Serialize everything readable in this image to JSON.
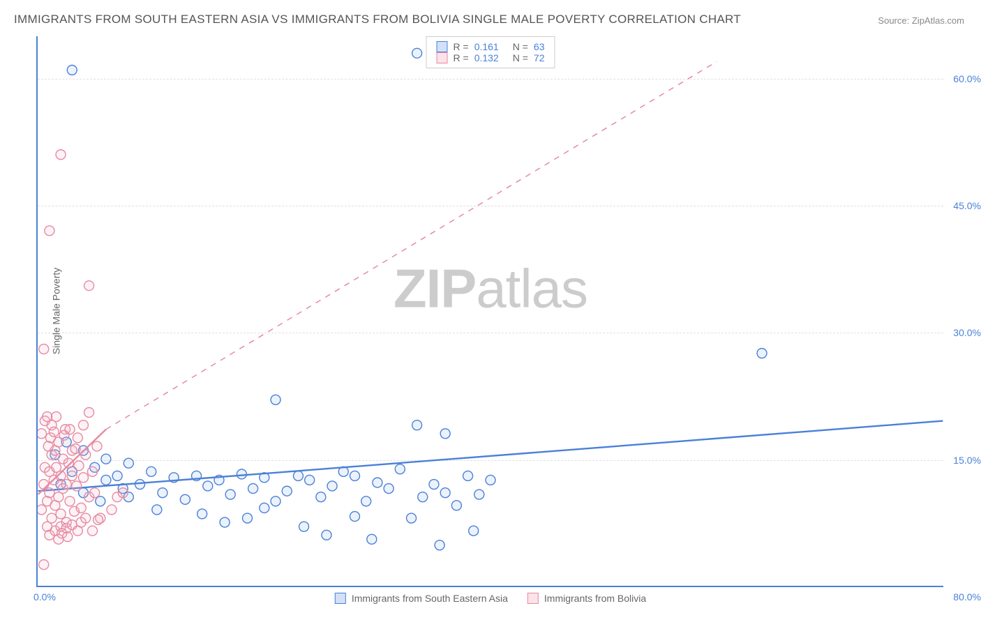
{
  "title": "IMMIGRANTS FROM SOUTH EASTERN ASIA VS IMMIGRANTS FROM BOLIVIA SINGLE MALE POVERTY CORRELATION CHART",
  "source_label": "Source:",
  "source_value": "ZipAtlas.com",
  "ylabel": "Single Male Poverty",
  "watermark_bold": "ZIP",
  "watermark_light": "atlas",
  "chart": {
    "type": "scatter",
    "xlim": [
      0,
      80
    ],
    "ylim": [
      0,
      65
    ],
    "xtick_min_label": "0.0%",
    "xtick_max_label": "80.0%",
    "yticks": [
      {
        "v": 15,
        "label": "15.0%"
      },
      {
        "v": 30,
        "label": "30.0%"
      },
      {
        "v": 45,
        "label": "45.0%"
      },
      {
        "v": 60,
        "label": "60.0%"
      }
    ],
    "grid_color": "#e0e0e0",
    "axis_color": "#4a80d8",
    "background_color": "#ffffff",
    "marker_radius": 7,
    "marker_stroke_width": 1.4,
    "marker_fill_opacity": 0.18,
    "trend_line_width": 2.4,
    "trend_dash_width": 1.5,
    "series": [
      {
        "name": "Immigrants from South Eastern Asia",
        "color_stroke": "#4a80d8",
        "color_fill": "#8fb5ec",
        "r_value": "0.161",
        "n_value": "63",
        "trend": {
          "x1": 0,
          "y1": 11.2,
          "x2": 80,
          "y2": 19.5,
          "dashed": false
        },
        "trend_ext": null,
        "points": [
          [
            2,
            12
          ],
          [
            3,
            13.5
          ],
          [
            4,
            11
          ],
          [
            5,
            14
          ],
          [
            5.5,
            10
          ],
          [
            6,
            12.5
          ],
          [
            7,
            13
          ],
          [
            7.5,
            11.5
          ],
          [
            8,
            10.5
          ],
          [
            9,
            12
          ],
          [
            10,
            13.5
          ],
          [
            10.5,
            9
          ],
          [
            11,
            11
          ],
          [
            12,
            12.8
          ],
          [
            13,
            10.2
          ],
          [
            14,
            13
          ],
          [
            14.5,
            8.5
          ],
          [
            15,
            11.8
          ],
          [
            16,
            12.5
          ],
          [
            16.5,
            7.5
          ],
          [
            17,
            10.8
          ],
          [
            18,
            13.2
          ],
          [
            18.5,
            8
          ],
          [
            19,
            11.5
          ],
          [
            20,
            9.2
          ],
          [
            20,
            12.8
          ],
          [
            21,
            10
          ],
          [
            21,
            22
          ],
          [
            22,
            11.2
          ],
          [
            23,
            13
          ],
          [
            23.5,
            7
          ],
          [
            24,
            12.5
          ],
          [
            25,
            10.5
          ],
          [
            25.5,
            6
          ],
          [
            26,
            11.8
          ],
          [
            27,
            13.5
          ],
          [
            28,
            13
          ],
          [
            28,
            8.2
          ],
          [
            29,
            10
          ],
          [
            29.5,
            5.5
          ],
          [
            30,
            12.2
          ],
          [
            31,
            11.5
          ],
          [
            32,
            13.8
          ],
          [
            33,
            8
          ],
          [
            33.5,
            19
          ],
          [
            34,
            10.5
          ],
          [
            35,
            12
          ],
          [
            35.5,
            4.8
          ],
          [
            36,
            11
          ],
          [
            36,
            18
          ],
          [
            37,
            9.5
          ],
          [
            38,
            13
          ],
          [
            38.5,
            6.5
          ],
          [
            39,
            10.8
          ],
          [
            40,
            12.5
          ],
          [
            33.5,
            63
          ],
          [
            64,
            27.5
          ],
          [
            3,
            61
          ],
          [
            1.5,
            15.5
          ],
          [
            2.5,
            17
          ],
          [
            4,
            16
          ],
          [
            6,
            15
          ],
          [
            8,
            14.5
          ]
        ]
      },
      {
        "name": "Immigrants from Bolivia",
        "color_stroke": "#e68aa2",
        "color_fill": "#f5b8c8",
        "r_value": "0.132",
        "n_value": "72",
        "trend": {
          "x1": 0,
          "y1": 10.8,
          "x2": 6,
          "y2": 18.5,
          "dashed": false
        },
        "trend_ext": {
          "x1": 6,
          "y1": 18.5,
          "x2": 60,
          "y2": 62,
          "dashed": true
        },
        "points": [
          [
            0.3,
            9
          ],
          [
            0.5,
            12
          ],
          [
            0.6,
            14
          ],
          [
            0.8,
            10
          ],
          [
            0.8,
            7
          ],
          [
            1,
            13.5
          ],
          [
            1,
            11
          ],
          [
            1.2,
            15.5
          ],
          [
            1.2,
            8
          ],
          [
            1.4,
            12.5
          ],
          [
            1.5,
            16
          ],
          [
            1.5,
            9.5
          ],
          [
            1.6,
            14
          ],
          [
            1.8,
            10.5
          ],
          [
            1.8,
            17
          ],
          [
            2,
            13
          ],
          [
            2,
            8.5
          ],
          [
            2.2,
            15
          ],
          [
            2.2,
            11.5
          ],
          [
            2.4,
            18.5
          ],
          [
            2.5,
            12
          ],
          [
            2.5,
            7.5
          ],
          [
            2.7,
            14.5
          ],
          [
            2.8,
            10
          ],
          [
            3,
            16
          ],
          [
            3,
            13
          ],
          [
            3.2,
            8.8
          ],
          [
            3.4,
            11.8
          ],
          [
            3.5,
            17.5
          ],
          [
            3.6,
            14.2
          ],
          [
            3.8,
            9.2
          ],
          [
            4,
            12.8
          ],
          [
            4,
            19
          ],
          [
            4.2,
            15.5
          ],
          [
            4.5,
            10.5
          ],
          [
            4.5,
            20.5
          ],
          [
            4.8,
            13.5
          ],
          [
            5,
            11
          ],
          [
            5.2,
            16.5
          ],
          [
            5.5,
            8
          ],
          [
            1,
            6
          ],
          [
            0.5,
            2.5
          ],
          [
            1.5,
            6.5
          ],
          [
            2,
            7
          ],
          [
            2.5,
            6.8
          ],
          [
            3,
            7.2
          ],
          [
            3.5,
            6.5
          ],
          [
            0.3,
            18
          ],
          [
            0.6,
            19.5
          ],
          [
            0.8,
            20
          ],
          [
            1.2,
            19
          ],
          [
            0.5,
            28
          ],
          [
            1,
            42
          ],
          [
            2,
            51
          ],
          [
            4.5,
            35.5
          ],
          [
            6.5,
            9
          ],
          [
            7,
            10.5
          ],
          [
            7.5,
            11
          ],
          [
            3.8,
            7.5
          ],
          [
            4.2,
            8
          ],
          [
            4.8,
            6.5
          ],
          [
            5.3,
            7.8
          ],
          [
            1.8,
            5.5
          ],
          [
            2.1,
            6.2
          ],
          [
            2.6,
            5.8
          ],
          [
            1.1,
            17.5
          ],
          [
            1.4,
            18.2
          ],
          [
            0.9,
            16.5
          ],
          [
            1.6,
            20
          ],
          [
            2.3,
            17.8
          ],
          [
            2.8,
            18.5
          ],
          [
            3.3,
            16.2
          ]
        ]
      }
    ]
  },
  "top_legend_row_r": "R =",
  "top_legend_row_n": "N ="
}
